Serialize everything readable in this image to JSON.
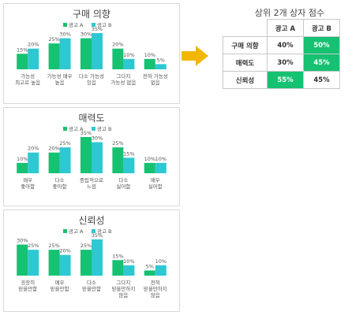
{
  "colors": {
    "series_a": "#16c172",
    "series_b": "#2ec8d2",
    "arrow": "#f2b705",
    "highlight": "#16c172"
  },
  "chart_data": [
    {
      "type": "bar",
      "title": "구매 의향",
      "categories": [
        "가능성 최고로 높음",
        "가능성 매우 높음",
        "다소 가능성 있음",
        "그다지 가능성 없음",
        "전혀 가능성 없음"
      ],
      "category_lines": [
        [
          "가능성",
          "최고로 높음"
        ],
        [
          "가능성 매우",
          "높음"
        ],
        [
          "다소 가능성",
          "있음"
        ],
        [
          "그다지",
          "가능성 없음"
        ],
        [
          "전혀 가능성",
          "없음"
        ]
      ],
      "series": [
        {
          "name": "광고 A",
          "values": [
            15,
            25,
            30,
            20,
            10
          ]
        },
        {
          "name": "광고 B",
          "values": [
            20,
            30,
            35,
            10,
            5
          ]
        }
      ],
      "value_suffix": "%",
      "legend": "top-center",
      "grid": false
    },
    {
      "type": "bar",
      "title": "매력도",
      "categories": [
        "매우 좋아함",
        "다소 좋아함",
        "중립적으로 느낌",
        "다소 싫어함",
        "매우 싫어함"
      ],
      "category_lines": [
        [
          "매우",
          "좋아함"
        ],
        [
          "다소",
          "좋아함"
        ],
        [
          "중립적으로",
          "느낌"
        ],
        [
          "다소",
          "싫어함"
        ],
        [
          "매우",
          "싫어함"
        ]
      ],
      "series": [
        {
          "name": "광고 A",
          "values": [
            10,
            20,
            35,
            25,
            10
          ]
        },
        {
          "name": "광고 B",
          "values": [
            20,
            25,
            30,
            15,
            10
          ]
        }
      ],
      "value_suffix": "%",
      "legend": "top-center",
      "grid": false
    },
    {
      "type": "bar",
      "title": "신뢰성",
      "categories": [
        "굉장히 믿을만함",
        "매우 믿을만함",
        "다소 믿을만함",
        "그다지 믿을만하지 않음",
        "전혀 믿을만하지 않음"
      ],
      "category_lines": [
        [
          "굉장히",
          "믿을만함"
        ],
        [
          "매우",
          "믿을만함"
        ],
        [
          "다소",
          "믿을만함"
        ],
        [
          "그다지",
          "믿을만하지",
          "않음"
        ],
        [
          "전혀",
          "믿을만하지",
          "않음"
        ]
      ],
      "series": [
        {
          "name": "광고 A",
          "values": [
            30,
            25,
            25,
            15,
            5
          ]
        },
        {
          "name": "광고 B",
          "values": [
            25,
            20,
            35,
            10,
            10
          ]
        }
      ],
      "value_suffix": "%",
      "legend": "top-center",
      "grid": false
    }
  ],
  "score_table": {
    "title": "상위 2개 상자 점수",
    "headers": [
      "광고 A",
      "광고 B"
    ],
    "rows": [
      {
        "label": "구매 의향",
        "a": "40%",
        "b": "50%",
        "highlight": "b"
      },
      {
        "label": "매력도",
        "a": "30%",
        "b": "45%",
        "highlight": "b"
      },
      {
        "label": "신뢰성",
        "a": "55%",
        "b": "45%",
        "highlight": "a"
      }
    ]
  }
}
